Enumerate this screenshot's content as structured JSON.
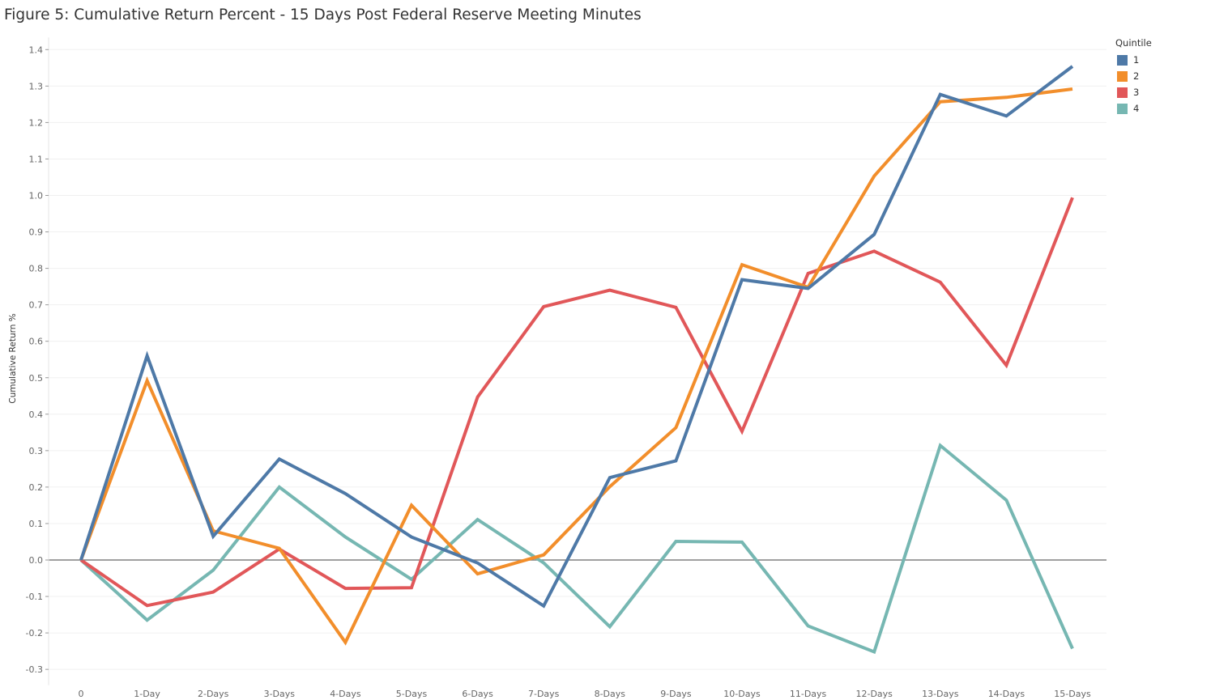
{
  "title": "Figure 5: Cumulative Return Percent - 15 Days Post Federal Reserve Meeting Minutes",
  "legend": {
    "title": "Quintile"
  },
  "chart_data": {
    "type": "line",
    "title": "Figure 5: Cumulative Return Percent - 15 Days Post Federal Reserve Meeting Minutes",
    "xlabel": "",
    "ylabel": "Cumulative Return %",
    "categories": [
      "0",
      "1-Day",
      "2-Days",
      "3-Days",
      "4-Days",
      "5-Days",
      "6-Days",
      "7-Days",
      "8-Days",
      "9-Days",
      "10-Days",
      "11-Days",
      "12-Days",
      "13-Days",
      "14-Days",
      "15-Days"
    ],
    "ylim": [
      -0.33,
      1.42
    ],
    "yticks": [
      "1.4",
      "1.3",
      "1.2",
      "1.1",
      "1.0",
      "0.9",
      "0.8",
      "0.7",
      "0.6",
      "0.5",
      "0.4",
      "0.3",
      "0.2",
      "0.1",
      "0.0",
      "-0.1",
      "-0.2",
      "-0.3"
    ],
    "grid": true,
    "legend_position": "top-right",
    "series": [
      {
        "name": "1",
        "color": "#4e79a7",
        "values": [
          0.0,
          0.56,
          0.065,
          0.277,
          0.182,
          0.063,
          -0.008,
          -0.126,
          0.226,
          0.272,
          0.769,
          0.745,
          0.893,
          1.277,
          1.218,
          1.354
        ]
      },
      {
        "name": "2",
        "color": "#f28e2b",
        "values": [
          0.0,
          0.492,
          0.08,
          0.032,
          -0.226,
          0.15,
          -0.038,
          0.014,
          0.201,
          0.363,
          0.81,
          0.748,
          1.053,
          1.257,
          1.269,
          1.292
        ]
      },
      {
        "name": "3",
        "color": "#e15759",
        "values": [
          0.0,
          -0.125,
          -0.088,
          0.03,
          -0.078,
          -0.076,
          0.447,
          0.695,
          0.74,
          0.693,
          0.353,
          0.786,
          0.847,
          0.762,
          0.534,
          0.994
        ]
      },
      {
        "name": "4",
        "color": "#76b7b2",
        "values": [
          0.0,
          -0.165,
          -0.028,
          0.2,
          0.063,
          -0.053,
          0.111,
          -0.008,
          -0.183,
          0.051,
          0.049,
          -0.181,
          -0.252,
          0.314,
          0.164,
          -0.243
        ]
      }
    ]
  }
}
